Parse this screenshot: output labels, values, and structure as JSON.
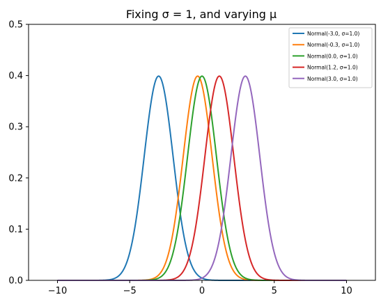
{
  "chart_data": {
    "type": "line",
    "title": "Fixing σ = 1, and varying μ",
    "xlabel": "",
    "ylabel": "",
    "xlim": [
      -12,
      12
    ],
    "ylim": [
      0,
      0.5
    ],
    "xticks": [
      -10,
      -5,
      0,
      5,
      10
    ],
    "xtick_labels": [
      "−10",
      "−5",
      "0",
      "5",
      "10"
    ],
    "yticks": [
      0.0,
      0.1,
      0.2,
      0.3,
      0.4,
      0.5
    ],
    "ytick_labels": [
      "0.0",
      "0.1",
      "0.2",
      "0.3",
      "0.4",
      "0.5"
    ],
    "grid": false,
    "legend_position": "top-right",
    "x_range": [
      -10,
      10
    ],
    "series": [
      {
        "name": "Normal(-3.0, σ=1.0)",
        "mu": -3.0,
        "sigma": 1.0,
        "color": "#1f77b4"
      },
      {
        "name": "Normal(-0.3, σ=1.0)",
        "mu": -0.3,
        "sigma": 1.0,
        "color": "#ff7f0e"
      },
      {
        "name": "Normal(0.0, σ=1.0)",
        "mu": 0.0,
        "sigma": 1.0,
        "color": "#2ca02c"
      },
      {
        "name": "Normal(1.2, σ=1.0)",
        "mu": 1.2,
        "sigma": 1.0,
        "color": "#d62728"
      },
      {
        "name": "Normal(3.0, σ=1.0)",
        "mu": 3.0,
        "sigma": 1.0,
        "color": "#9467bd"
      }
    ]
  }
}
